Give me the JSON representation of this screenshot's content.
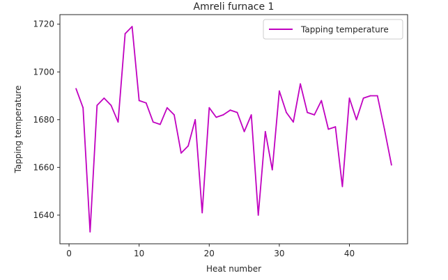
{
  "chart_data": {
    "type": "line",
    "title": "Amreli furnace 1",
    "xlabel": "Heat number",
    "ylabel": "Tapping temperature",
    "xlim": [
      -1.3,
      48.3
    ],
    "ylim": [
      1628,
      1724
    ],
    "xticks": [
      0,
      10,
      20,
      30,
      40
    ],
    "yticks": [
      1640,
      1660,
      1680,
      1700,
      1720
    ],
    "xtick_labels": [
      "0",
      "10",
      "20",
      "30",
      "40"
    ],
    "ytick_labels": [
      "1640",
      "1660",
      "1680",
      "1700",
      "1720"
    ],
    "grid": false,
    "legend_position": "upper right",
    "series": [
      {
        "name": "Tapping temperature",
        "color": "#c000c0",
        "x": [
          1,
          2,
          3,
          4,
          5,
          6,
          7,
          8,
          9,
          10,
          11,
          12,
          13,
          14,
          15,
          16,
          17,
          18,
          19,
          20,
          21,
          22,
          23,
          24,
          25,
          26,
          27,
          28,
          29,
          30,
          31,
          32,
          33,
          34,
          35,
          36,
          37,
          38,
          39,
          40,
          41,
          42,
          43,
          44,
          45,
          46
        ],
        "values": [
          1693,
          1685,
          1633,
          1686,
          1689,
          1686,
          1679,
          1716,
          1719,
          1688,
          1687,
          1679,
          1678,
          1685,
          1682,
          1666,
          1669,
          1680,
          1641,
          1685,
          1681,
          1682,
          1684,
          1683,
          1675,
          1682,
          1640,
          1675,
          1659,
          1692,
          1683,
          1679,
          1695,
          1683,
          1682,
          1688,
          1676,
          1677,
          1652,
          1689,
          1680,
          1689,
          1690,
          1690,
          1676,
          1661
        ]
      }
    ]
  }
}
